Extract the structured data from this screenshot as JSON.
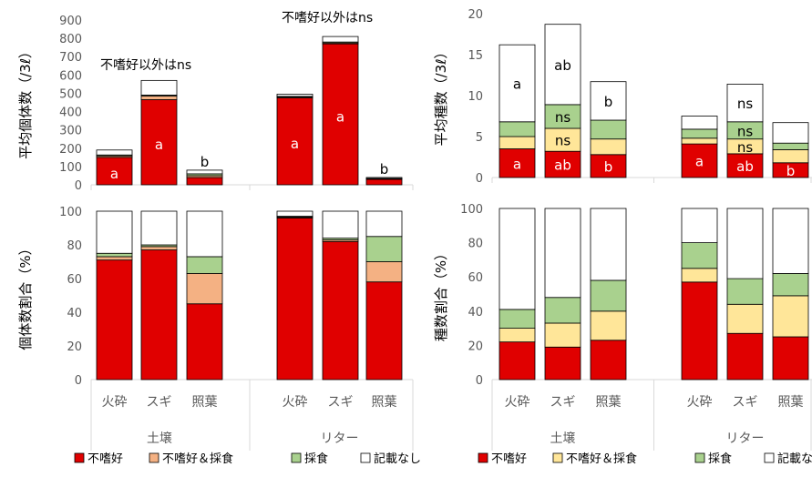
{
  "colors": {
    "不嗜好": "#e00000",
    "不嗜好＆採食": "#f4b183",
    "採食": "#a9d18e",
    "記載なし": "#ffffff"
  },
  "colors_species": {
    "不嗜好": "#e00000",
    "不嗜好＆採食": "#ffe699",
    "採食": "#a9d18e",
    "記載なし": "#ffffff"
  },
  "chart_data": [
    {
      "type": "bar",
      "stacked": true,
      "ylabel": "平均個体数（/3ℓ）",
      "ylim": [
        0,
        900
      ],
      "ytick_step": 100,
      "groups": [
        "土壌",
        "リター"
      ],
      "categories": [
        "火砕",
        "スギ",
        "照葉",
        "火砕",
        "スギ",
        "照葉"
      ],
      "series": [
        {
          "name": "不嗜好",
          "values": [
            150,
            465,
            40,
            475,
            770,
            30
          ]
        },
        {
          "name": "不嗜好＆採食",
          "values": [
            8,
            20,
            10,
            5,
            5,
            2
          ]
        },
        {
          "name": "採食",
          "values": [
            5,
            5,
            10,
            3,
            5,
            3
          ]
        },
        {
          "name": "記載なし",
          "values": [
            27,
            80,
            20,
            12,
            30,
            5
          ]
        }
      ],
      "bar_labels": [
        "a",
        "a",
        "b",
        "a",
        "a",
        "b"
      ],
      "annotations": [
        "不嗜好以外はns",
        "不嗜好以外はns"
      ]
    },
    {
      "type": "bar",
      "stacked": true,
      "ylabel": "平均種数（/3ℓ）",
      "ylim": [
        0,
        20
      ],
      "ytick_step": 5,
      "groups": [
        "土壌",
        "リター"
      ],
      "categories": [
        "火砕",
        "スギ",
        "照葉",
        "火砕",
        "スギ",
        "照葉"
      ],
      "series": [
        {
          "name": "不嗜好",
          "values": [
            3.5,
            3.2,
            2.8,
            4.1,
            2.9,
            1.8
          ]
        },
        {
          "name": "不嗜好＆採食",
          "values": [
            1.5,
            2.8,
            1.9,
            0.7,
            1.8,
            1.6
          ]
        },
        {
          "name": "採食",
          "values": [
            1.8,
            2.9,
            2.3,
            1.1,
            2.1,
            0.8
          ]
        },
        {
          "name": "記載なし",
          "values": [
            9.4,
            9.8,
            4.7,
            1.6,
            4.6,
            2.5
          ]
        }
      ],
      "bar_labels": [
        [
          "a",
          "",
          "",
          "a"
        ],
        [
          "ab",
          "ns",
          "ns",
          "ab"
        ],
        [
          "b",
          "",
          "",
          "b"
        ],
        [
          "a",
          "",
          "",
          ""
        ],
        [
          "ab",
          "ns",
          "ns",
          "ns"
        ],
        [
          "b",
          "",
          "",
          ""
        ]
      ]
    },
    {
      "type": "bar",
      "stacked": true,
      "percent": true,
      "ylabel": "個体数割合（%）",
      "ylim": [
        0,
        100
      ],
      "ytick_step": 20,
      "groups": [
        "土壌",
        "リター"
      ],
      "categories": [
        "火砕",
        "スギ",
        "照葉",
        "火砕",
        "スギ",
        "照葉"
      ],
      "series": [
        {
          "name": "不嗜好",
          "values": [
            71,
            77,
            45,
            96,
            82,
            58
          ]
        },
        {
          "name": "不嗜好＆採食",
          "values": [
            2,
            2,
            18,
            0.5,
            1,
            12
          ]
        },
        {
          "name": "採食",
          "values": [
            2,
            1,
            10,
            0.5,
            1,
            15
          ]
        },
        {
          "name": "記載なし",
          "values": [
            25,
            20,
            27,
            3,
            16,
            15
          ]
        }
      ]
    },
    {
      "type": "bar",
      "stacked": true,
      "percent": true,
      "ylabel": "種数割合（%）",
      "ylim": [
        0,
        100
      ],
      "ytick_step": 20,
      "groups": [
        "土壌",
        "リター"
      ],
      "categories": [
        "火砕",
        "スギ",
        "照葉",
        "火砕",
        "スギ",
        "照葉"
      ],
      "series": [
        {
          "name": "不嗜好",
          "values": [
            22,
            19,
            23,
            57,
            27,
            25
          ]
        },
        {
          "name": "不嗜好＆採食",
          "values": [
            8,
            14,
            17,
            8,
            17,
            24
          ]
        },
        {
          "name": "採食",
          "values": [
            11,
            15,
            18,
            15,
            15,
            13
          ]
        },
        {
          "name": "記載なし",
          "values": [
            59,
            52,
            42,
            20,
            41,
            38
          ]
        }
      ]
    }
  ],
  "legend": [
    "不嗜好",
    "不嗜好＆採食",
    "採食",
    "記載なし"
  ]
}
